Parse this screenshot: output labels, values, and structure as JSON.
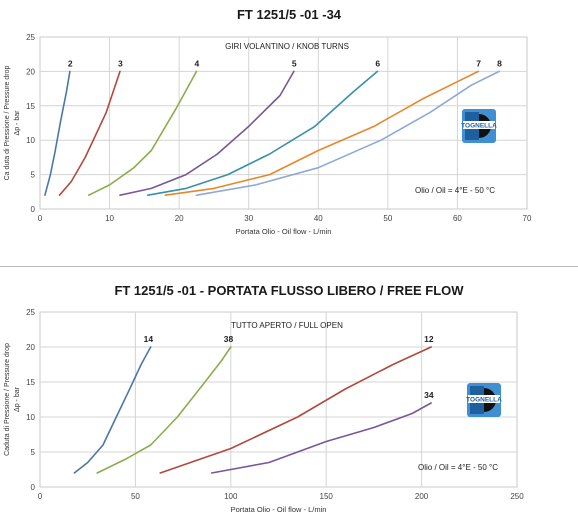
{
  "chart_data": [
    {
      "type": "line",
      "title": "FT 1251/5 -01 -34",
      "subtitle": "GIRI VOLANTINO / KNOB TURNS",
      "xlabel": "Portata Olio - Oil flow -  L/min",
      "ylabel": "Ca duta di Pressione / Pressure drop",
      "ylabel2": "Δp - bar",
      "xlim": [
        0,
        70
      ],
      "ylim": [
        0,
        25
      ],
      "xticks": [
        0,
        10,
        20,
        30,
        40,
        50,
        60,
        70
      ],
      "yticks": [
        0,
        5,
        10,
        15,
        20,
        25
      ],
      "grid": true,
      "annotation": "Olio / Oil = 4°E - 50 °C",
      "logo_text": "TOGNELLA",
      "series": [
        {
          "name": "2",
          "color": "#4a77a8",
          "x": [
            0.7,
            1.5,
            2.1,
            3.0,
            3.8,
            4.3
          ],
          "y": [
            2,
            5,
            8,
            13,
            17,
            20
          ]
        },
        {
          "name": "3",
          "color": "#b04a3c",
          "x": [
            2.8,
            4.5,
            6.5,
            9.5,
            11.5
          ],
          "y": [
            2,
            4,
            7.5,
            14,
            20
          ]
        },
        {
          "name": "4",
          "color": "#8aae4c",
          "x": [
            7.0,
            10.0,
            13.5,
            16.0,
            19.5,
            22.5
          ],
          "y": [
            2,
            3.5,
            6,
            8.5,
            14.5,
            20
          ]
        },
        {
          "name": "5",
          "color": "#76589a",
          "x": [
            11.5,
            16.0,
            21.0,
            25.5,
            30.0,
            34.5,
            36.5
          ],
          "y": [
            2,
            3,
            5,
            8,
            12,
            16.5,
            20
          ]
        },
        {
          "name": "6",
          "color": "#3891a8",
          "x": [
            15.5,
            21.0,
            27.0,
            33.0,
            39.5,
            45.0,
            48.5
          ],
          "y": [
            2,
            3,
            5,
            8,
            12,
            17,
            20
          ]
        },
        {
          "name": "7",
          "color": "#e8872a",
          "x": [
            18.0,
            25.0,
            33.0,
            40.0,
            48.0,
            55.0,
            60.0,
            63.0
          ],
          "y": [
            2,
            3,
            5,
            8.5,
            12,
            16,
            18.5,
            20
          ]
        },
        {
          "name": "8",
          "color": "#8ea9d4",
          "x": [
            22.5,
            31.0,
            40.0,
            49.0,
            56.0,
            62.0,
            66.0
          ],
          "y": [
            2,
            3.5,
            6,
            10,
            14,
            18,
            20
          ]
        }
      ]
    },
    {
      "type": "line",
      "title": "FT 1251/5 -01 - PORTATA FLUSSO LIBERO / FREE FLOW",
      "subtitle": "TUTTO APERTO / FULL OPEN",
      "xlabel": "Portata Olio - Oil flow -  L/min",
      "ylabel": "Caduta di Pressione / Pressure drop",
      "ylabel2": "Δp - bar",
      "xlim": [
        0,
        250
      ],
      "ylim": [
        0,
        25
      ],
      "xticks": [
        0,
        50,
        100,
        150,
        200,
        250
      ],
      "yticks": [
        0,
        5,
        10,
        15,
        20,
        25
      ],
      "grid": true,
      "annotation": "Olio / Oil = 4°E - 50 °C",
      "logo_text": "TOGNELLA",
      "series": [
        {
          "name": "14",
          "color": "#4a77a8",
          "x": [
            18,
            25,
            33,
            40,
            47,
            53,
            58
          ],
          "y": [
            2,
            3.5,
            6,
            10,
            14,
            17.5,
            20
          ]
        },
        {
          "name": "38",
          "color": "#8aae4c",
          "x": [
            30,
            45,
            58,
            72,
            85,
            95,
            100
          ],
          "y": [
            2,
            4,
            6,
            10,
            14.5,
            18,
            20
          ]
        },
        {
          "name": "12",
          "color": "#b04a3c",
          "x": [
            63,
            100,
            135,
            160,
            185,
            205
          ],
          "y": [
            2,
            5.5,
            10,
            14,
            17.5,
            20
          ]
        },
        {
          "name": "34",
          "color": "#76589a",
          "x": [
            90,
            120,
            150,
            175,
            195,
            205
          ],
          "y": [
            2,
            3.5,
            6.5,
            8.5,
            10.5,
            12
          ]
        }
      ]
    }
  ]
}
